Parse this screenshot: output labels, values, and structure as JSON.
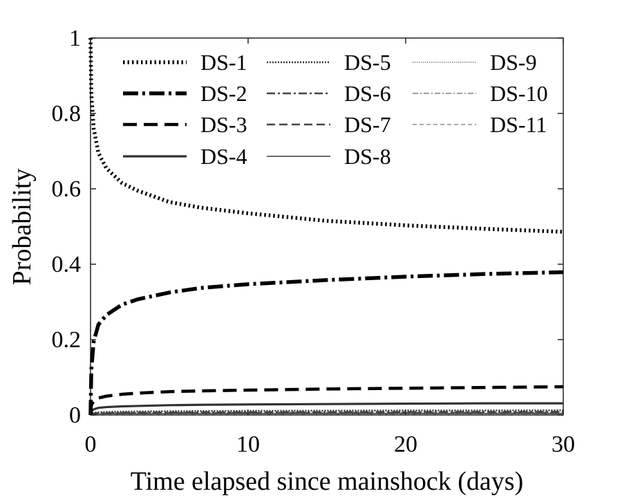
{
  "chart_data": {
    "type": "line",
    "xlabel": "Time elapsed since mainshock (days)",
    "ylabel": "Probability",
    "xlim": [
      0,
      30
    ],
    "ylim": [
      0,
      1
    ],
    "xticks": [
      0,
      10,
      20,
      30
    ],
    "yticks": [
      0,
      0.2,
      0.4,
      0.6,
      0.8,
      1
    ],
    "xtick_labels": [
      "0",
      "10",
      "20",
      "30"
    ],
    "ytick_labels": [
      "0",
      "0.2",
      "0.4",
      "0.6",
      "0.8",
      "1"
    ],
    "grid": false,
    "legend_position": "top",
    "x": [
      0,
      0.05,
      0.2,
      0.5,
      1,
      2,
      3,
      5,
      7,
      10,
      15,
      20,
      25,
      30
    ],
    "series": [
      {
        "name": "DS-1",
        "color": "#000000",
        "values": [
          1.0,
          0.85,
          0.76,
          0.695,
          0.655,
          0.615,
          0.595,
          0.565,
          0.55,
          0.535,
          0.515,
          0.503,
          0.494,
          0.486
        ]
      },
      {
        "name": "DS-2",
        "color": "#000000",
        "values": [
          0.0,
          0.12,
          0.195,
          0.24,
          0.265,
          0.293,
          0.307,
          0.325,
          0.337,
          0.347,
          0.358,
          0.367,
          0.374,
          0.379
        ]
      },
      {
        "name": "DS-3",
        "color": "#000000",
        "values": [
          0.0,
          0.025,
          0.038,
          0.045,
          0.05,
          0.055,
          0.058,
          0.062,
          0.064,
          0.066,
          0.069,
          0.071,
          0.073,
          0.075
        ]
      },
      {
        "name": "DS-4",
        "color": "#333333",
        "values": [
          0.0,
          0.01,
          0.015,
          0.019,
          0.021,
          0.023,
          0.024,
          0.026,
          0.027,
          0.028,
          0.029,
          0.03,
          0.031,
          0.031
        ]
      },
      {
        "name": "DS-5",
        "color": "#333333",
        "values": [
          0.0,
          0.004,
          0.006,
          0.007,
          0.008,
          0.009,
          0.0095,
          0.01,
          0.0105,
          0.011,
          0.0115,
          0.012,
          0.012,
          0.0125
        ]
      },
      {
        "name": "DS-6",
        "color": "#444444",
        "values": [
          0.0,
          0.003,
          0.004,
          0.005,
          0.0055,
          0.006,
          0.0065,
          0.007,
          0.0072,
          0.0075,
          0.0078,
          0.008,
          0.0082,
          0.0085
        ]
      },
      {
        "name": "DS-7",
        "color": "#444444",
        "values": [
          0.0,
          0.002,
          0.003,
          0.0035,
          0.004,
          0.0045,
          0.0048,
          0.005,
          0.0052,
          0.0055,
          0.0057,
          0.0059,
          0.006,
          0.0062
        ]
      },
      {
        "name": "DS-8",
        "color": "#555555",
        "values": [
          0.0,
          0.0015,
          0.002,
          0.0025,
          0.003,
          0.0033,
          0.0035,
          0.0037,
          0.0039,
          0.004,
          0.0042,
          0.0043,
          0.0044,
          0.0045
        ]
      },
      {
        "name": "DS-9",
        "color": "#666666",
        "values": [
          0.0,
          0.001,
          0.0014,
          0.0017,
          0.002,
          0.0022,
          0.0024,
          0.0026,
          0.0027,
          0.0028,
          0.0029,
          0.003,
          0.0031,
          0.0032
        ]
      },
      {
        "name": "DS-10",
        "color": "#666666",
        "values": [
          0.0,
          0.0007,
          0.001,
          0.0012,
          0.0014,
          0.0016,
          0.0017,
          0.0018,
          0.0019,
          0.002,
          0.0021,
          0.0021,
          0.0022,
          0.0022
        ]
      },
      {
        "name": "DS-11",
        "color": "#777777",
        "values": [
          0.0,
          0.0005,
          0.0007,
          0.0008,
          0.0009,
          0.001,
          0.0011,
          0.0012,
          0.0012,
          0.0013,
          0.0013,
          0.0014,
          0.0014,
          0.0015
        ]
      }
    ]
  }
}
